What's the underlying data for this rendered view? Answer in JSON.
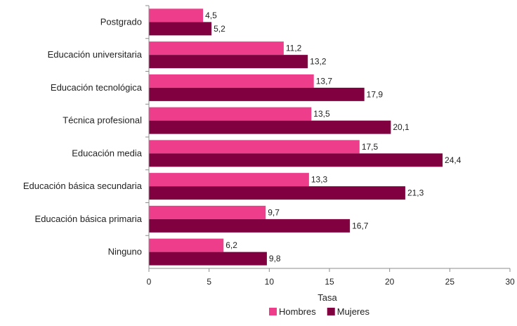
{
  "chart_data": {
    "type": "bar",
    "orientation": "horizontal",
    "categories": [
      "Postgrado",
      "Educación universitaria",
      "Educación tecnológica",
      "Técnica profesional",
      "Educación media",
      "Educación básica secundaria",
      "Educación básica primaria",
      "Ninguno"
    ],
    "series": [
      {
        "name": "Hombres",
        "color": "#ee3d8b",
        "values": [
          4.5,
          11.2,
          13.7,
          13.5,
          17.5,
          13.3,
          9.7,
          6.2
        ],
        "labels": [
          "4,5",
          "11,2",
          "13,7",
          "13,5",
          "17,5",
          "13,3",
          "9,7",
          "6,2"
        ]
      },
      {
        "name": "Mujeres",
        "color": "#800040",
        "values": [
          5.2,
          13.2,
          17.9,
          20.1,
          24.4,
          21.3,
          16.7,
          9.8
        ],
        "labels": [
          "5,2",
          "13,2",
          "17,9",
          "20,1",
          "24,4",
          "21,3",
          "16,7",
          "9,8"
        ]
      }
    ],
    "xlabel": "Tasa",
    "ylabel": "",
    "xlim": [
      0,
      30
    ],
    "xticks": [
      0,
      5,
      10,
      15,
      20,
      25,
      30
    ],
    "xtick_labels": [
      "0",
      "5",
      "10",
      "15",
      "20",
      "25",
      "30"
    ],
    "grid": false,
    "legend_position": "bottom"
  }
}
